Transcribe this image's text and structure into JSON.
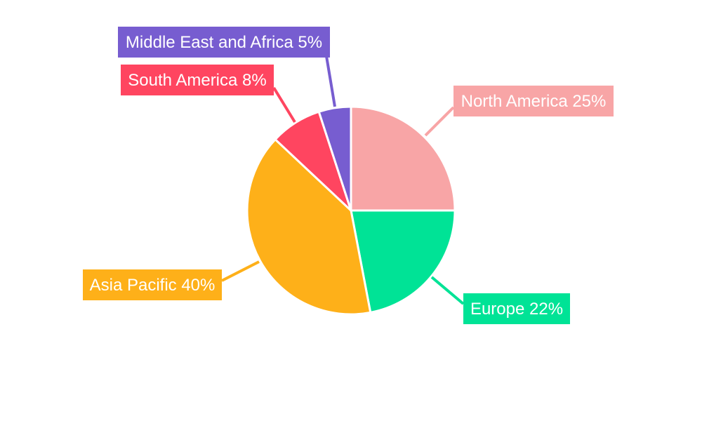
{
  "chart_data": {
    "type": "pie",
    "title": "",
    "start_angle": "12 o'clock, clockwise",
    "legend": "none",
    "slices": [
      {
        "label": "North America",
        "value": 25,
        "display": "North America 25%",
        "color": "#F8A5A6"
      },
      {
        "label": "Europe",
        "value": 22,
        "display": "Europe 22%",
        "color": "#00E396"
      },
      {
        "label": "Asia Pacific",
        "value": 40,
        "display": "Asia Pacific 40%",
        "color": "#FEB019"
      },
      {
        "label": "South America",
        "value": 8,
        "display": "South America 8%",
        "color": "#FF4560"
      },
      {
        "label": "Middle East and Africa",
        "value": 5,
        "display": "Middle East and Africa 5%",
        "color": "#775DD0"
      }
    ]
  }
}
